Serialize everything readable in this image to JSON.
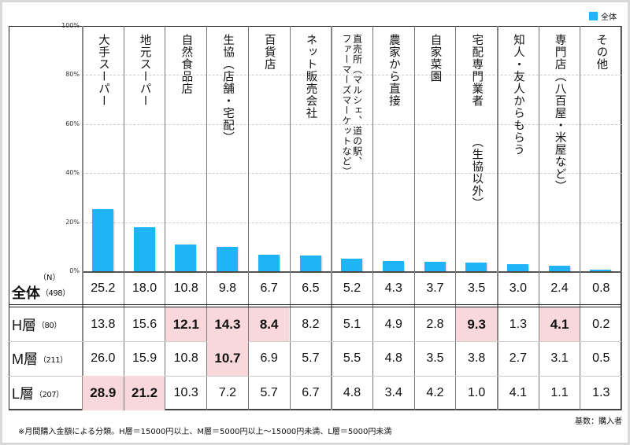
{
  "legend": {
    "label": "全体",
    "color": "#1fb4f5"
  },
  "chart_data": {
    "type": "bar",
    "yaxis": {
      "ticks": [
        "100%",
        "80%",
        "60%",
        "40%",
        "20%",
        "0%"
      ],
      "ylim": [
        0,
        100
      ],
      "grid": true
    },
    "categories": [
      [
        "大手スーパー"
      ],
      [
        "地元スーパー"
      ],
      [
        "自然食品店"
      ],
      [
        "生協（店舗・宅配）"
      ],
      [
        "百貨店"
      ],
      [
        "ネット販売会社"
      ],
      [
        "直売所（マルシェ、道の駅、",
        "ファーマーズマーケットなど）"
      ],
      [
        "農家から直接"
      ],
      [
        "自家菜園"
      ],
      [
        "宅配専門業者",
        "（生協以外）"
      ],
      [
        "知人・友人からもらう"
      ],
      [
        "専門店（八百屋・米屋など）"
      ],
      [
        "その他"
      ]
    ],
    "series": [
      {
        "name": "全体",
        "values": [
          25.2,
          18.0,
          10.8,
          9.8,
          6.7,
          6.5,
          5.2,
          4.3,
          3.7,
          3.5,
          3.0,
          2.4,
          0.8
        ]
      }
    ],
    "highlight_color": "#f9d8dc"
  },
  "table": {
    "n_label": "（N）",
    "rows": [
      {
        "label": "全体",
        "n": "（498）",
        "values": [
          "25.2",
          "18.0",
          "10.8",
          "9.8",
          "6.7",
          "6.5",
          "5.2",
          "4.3",
          "3.7",
          "3.5",
          "3.0",
          "2.4",
          "0.8"
        ],
        "highlight": []
      },
      {
        "label": "H層",
        "n": "（80）",
        "values": [
          "13.8",
          "15.6",
          "12.1",
          "14.3",
          "8.4",
          "8.2",
          "5.1",
          "4.9",
          "2.8",
          "9.3",
          "1.3",
          "4.1",
          "0.2"
        ],
        "highlight": [
          2,
          3,
          4,
          9,
          11
        ]
      },
      {
        "label": "M層",
        "n": "（211）",
        "values": [
          "26.0",
          "15.9",
          "10.8",
          "10.7",
          "6.9",
          "5.7",
          "5.5",
          "4.8",
          "3.5",
          "3.8",
          "2.7",
          "3.1",
          "0.5"
        ],
        "highlight": [
          3
        ]
      },
      {
        "label": "L層",
        "n": "（207）",
        "values": [
          "28.9",
          "21.2",
          "10.3",
          "7.2",
          "5.7",
          "6.7",
          "4.8",
          "3.4",
          "4.2",
          "1.0",
          "4.1",
          "1.1",
          "1.3"
        ],
        "highlight": [
          0,
          1
        ]
      }
    ]
  },
  "base_note": "基数：購入者",
  "footnote": "※月間購入金額による分類。H層＝15000円以上、M層＝5000円以上～15000円未満、L層＝5000円未満"
}
